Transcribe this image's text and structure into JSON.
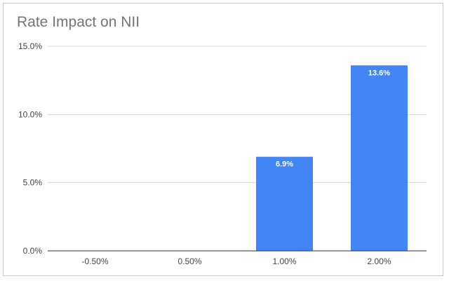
{
  "chart_data": {
    "type": "bar",
    "title": "Rate Impact on NII",
    "xlabel": "",
    "ylabel": "",
    "categories": [
      "-0.50%",
      "0.50%",
      "1.00%",
      "2.00%"
    ],
    "values": [
      0,
      0,
      6.9,
      13.6
    ],
    "data_labels": [
      "",
      "",
      "6.9%",
      "13.6%"
    ],
    "ylim": [
      0,
      15
    ],
    "yticks": [
      0,
      5,
      10,
      15
    ],
    "ytick_labels": [
      "0.0%",
      "5.0%",
      "10.0%",
      "15.0%"
    ],
    "grid": true,
    "legend": "none",
    "bar_color": "#4285f4",
    "grid_color": "#d9d9d9",
    "axis_color": "#333333"
  }
}
